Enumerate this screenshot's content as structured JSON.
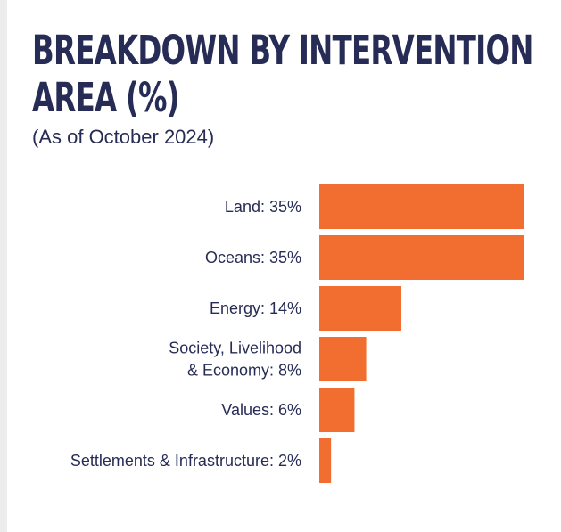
{
  "header": {
    "title_line1": "BREAKDOWN BY INTERVENTION",
    "title_line2": "AREA (%)",
    "subtitle": "(As of October 2024)"
  },
  "colors": {
    "bar": "#f26d30",
    "text": "#262c55"
  },
  "chart_data": {
    "type": "bar",
    "orientation": "horizontal",
    "title": "BREAKDOWN BY INTERVENTION AREA (%)",
    "subtitle": "(As of October 2024)",
    "categories": [
      "Land: 35%",
      "Oceans: 35%",
      "Energy: 14%",
      "Society, Livelihood & Economy: 8%",
      "Values: 6%",
      "Settlements & Infrastructure: 2%"
    ],
    "category_lines": [
      [
        "Land: 35%"
      ],
      [
        "Oceans: 35%"
      ],
      [
        "Energy: 14%"
      ],
      [
        "Society, Livelihood",
        "& Economy: 8%"
      ],
      [
        "Values: 6%"
      ],
      [
        "Settlements & Infrastructure: 2%"
      ]
    ],
    "values": [
      35,
      35,
      14,
      8,
      6,
      2
    ],
    "xlim": [
      0,
      35
    ],
    "grid": false,
    "legend": "none"
  }
}
